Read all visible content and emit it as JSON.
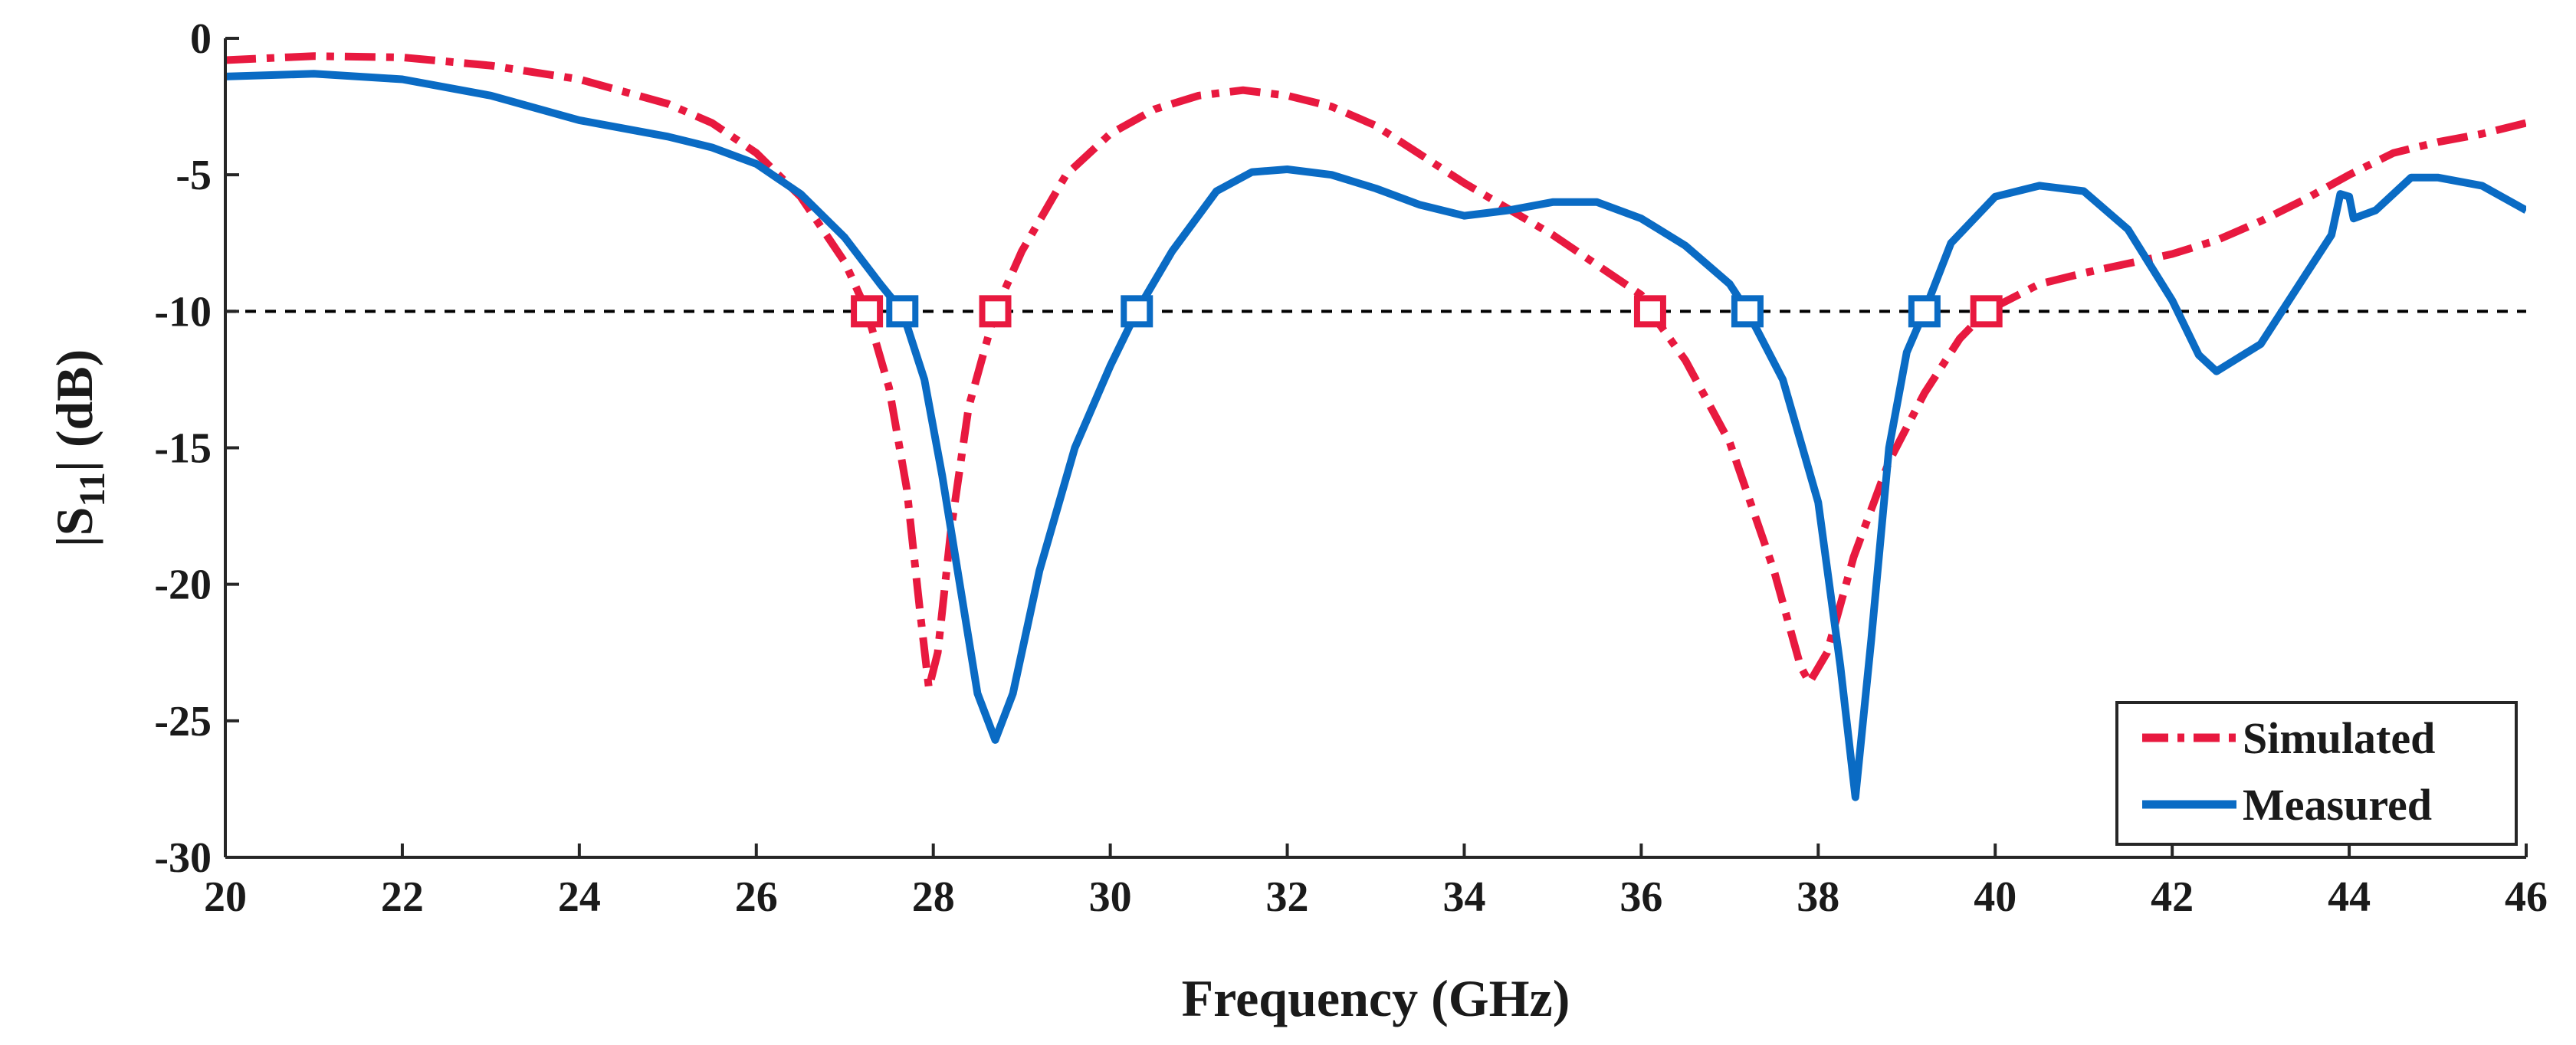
{
  "chart_data": {
    "type": "line",
    "xlabel": "Frequency (GHz)",
    "ylabel": {
      "prefix": "|S",
      "subscript": "11",
      "suffix": "| (dB)"
    },
    "xlim": [
      20,
      46
    ],
    "ylim": [
      -30,
      0
    ],
    "xticks": [
      20,
      22,
      24,
      26,
      28,
      30,
      32,
      34,
      36,
      38,
      40,
      42,
      44,
      46
    ],
    "yticks": [
      0,
      -5,
      -10,
      -15,
      -20,
      -25,
      -30
    ],
    "grid": false,
    "legend_position": "bottom-right",
    "reference_line": {
      "y": -10,
      "style": "dashed",
      "color": "#000000"
    },
    "series": [
      {
        "name": "Simulated",
        "color": "#E8193F",
        "style": "dash-dot",
        "points": [
          [
            20,
            -0.8
          ],
          [
            21,
            -0.65
          ],
          [
            22,
            -0.7
          ],
          [
            23,
            -1.0
          ],
          [
            24,
            -1.5
          ],
          [
            25,
            -2.4
          ],
          [
            25.5,
            -3.1
          ],
          [
            26,
            -4.2
          ],
          [
            26.5,
            -5.8
          ],
          [
            27,
            -8.2
          ],
          [
            27.25,
            -10
          ],
          [
            27.5,
            -12.8
          ],
          [
            27.7,
            -16.5
          ],
          [
            27.85,
            -21.0
          ],
          [
            27.95,
            -23.8
          ],
          [
            28.05,
            -22.5
          ],
          [
            28.2,
            -18.0
          ],
          [
            28.4,
            -13.5
          ],
          [
            28.7,
            -10
          ],
          [
            29,
            -7.8
          ],
          [
            29.5,
            -5.0
          ],
          [
            30,
            -3.5
          ],
          [
            30.5,
            -2.6
          ],
          [
            31,
            -2.1
          ],
          [
            31.5,
            -1.9
          ],
          [
            32,
            -2.1
          ],
          [
            32.5,
            -2.5
          ],
          [
            33,
            -3.2
          ],
          [
            34,
            -5.3
          ],
          [
            35,
            -7.2
          ],
          [
            35.5,
            -8.3
          ],
          [
            36,
            -9.4
          ],
          [
            36.1,
            -10
          ],
          [
            36.5,
            -11.8
          ],
          [
            37,
            -14.8
          ],
          [
            37.5,
            -19.5
          ],
          [
            37.8,
            -23.0
          ],
          [
            37.9,
            -23.6
          ],
          [
            38.1,
            -22.5
          ],
          [
            38.4,
            -19.0
          ],
          [
            38.8,
            -15.5
          ],
          [
            39.2,
            -13.0
          ],
          [
            39.6,
            -11.0
          ],
          [
            39.9,
            -10
          ],
          [
            40.5,
            -9.0
          ],
          [
            41,
            -8.6
          ],
          [
            42,
            -7.9
          ],
          [
            42.5,
            -7.4
          ],
          [
            43,
            -6.7
          ],
          [
            43.5,
            -5.9
          ],
          [
            44,
            -5.0
          ],
          [
            44.5,
            -4.2
          ],
          [
            45,
            -3.8
          ],
          [
            45.5,
            -3.5
          ],
          [
            46,
            -3.1
          ]
        ]
      },
      {
        "name": "Measured",
        "color": "#0A6BC4",
        "style": "solid",
        "points": [
          [
            20,
            -1.4
          ],
          [
            21,
            -1.3
          ],
          [
            22,
            -1.5
          ],
          [
            23,
            -2.1
          ],
          [
            24,
            -3.0
          ],
          [
            25,
            -3.6
          ],
          [
            25.5,
            -4.0
          ],
          [
            26,
            -4.6
          ],
          [
            26.5,
            -5.7
          ],
          [
            27,
            -7.3
          ],
          [
            27.4,
            -9.0
          ],
          [
            27.65,
            -10
          ],
          [
            27.9,
            -12.5
          ],
          [
            28.1,
            -16.0
          ],
          [
            28.3,
            -20.0
          ],
          [
            28.5,
            -24.0
          ],
          [
            28.7,
            -25.7
          ],
          [
            28.9,
            -24.0
          ],
          [
            29.2,
            -19.5
          ],
          [
            29.6,
            -15.0
          ],
          [
            30,
            -12.0
          ],
          [
            30.3,
            -10
          ],
          [
            30.7,
            -7.8
          ],
          [
            31.2,
            -5.6
          ],
          [
            31.6,
            -4.9
          ],
          [
            32,
            -4.8
          ],
          [
            32.5,
            -5.0
          ],
          [
            33,
            -5.5
          ],
          [
            33.5,
            -6.1
          ],
          [
            34,
            -6.5
          ],
          [
            34.5,
            -6.3
          ],
          [
            35,
            -6.0
          ],
          [
            35.5,
            -6.0
          ],
          [
            36,
            -6.6
          ],
          [
            36.5,
            -7.6
          ],
          [
            37,
            -9.0
          ],
          [
            37.2,
            -10
          ],
          [
            37.6,
            -12.5
          ],
          [
            38,
            -17.0
          ],
          [
            38.25,
            -23.0
          ],
          [
            38.42,
            -27.8
          ],
          [
            38.6,
            -22.0
          ],
          [
            38.8,
            -15.0
          ],
          [
            39,
            -11.5
          ],
          [
            39.2,
            -10
          ],
          [
            39.5,
            -7.5
          ],
          [
            40,
            -5.8
          ],
          [
            40.5,
            -5.4
          ],
          [
            41,
            -5.6
          ],
          [
            41.5,
            -7.0
          ],
          [
            42,
            -9.6
          ],
          [
            42.3,
            -11.6
          ],
          [
            42.5,
            -12.2
          ],
          [
            43,
            -11.2
          ],
          [
            43.5,
            -8.7
          ],
          [
            43.8,
            -7.2
          ],
          [
            43.9,
            -5.7
          ],
          [
            44,
            -5.8
          ],
          [
            44.05,
            -6.6
          ],
          [
            44.3,
            -6.3
          ],
          [
            44.7,
            -5.1
          ],
          [
            45,
            -5.1
          ],
          [
            45.5,
            -5.4
          ],
          [
            46,
            -6.3
          ]
        ]
      }
    ],
    "markers": [
      {
        "series": "Simulated",
        "x": 27.25,
        "y": -10
      },
      {
        "series": "Simulated",
        "x": 28.7,
        "y": -10
      },
      {
        "series": "Simulated",
        "x": 36.1,
        "y": -10
      },
      {
        "series": "Simulated",
        "x": 39.9,
        "y": -10
      },
      {
        "series": "Measured",
        "x": 27.65,
        "y": -10
      },
      {
        "series": "Measured",
        "x": 30.3,
        "y": -10
      },
      {
        "series": "Measured",
        "x": 37.2,
        "y": -10
      },
      {
        "series": "Measured",
        "x": 39.2,
        "y": -10
      }
    ]
  }
}
